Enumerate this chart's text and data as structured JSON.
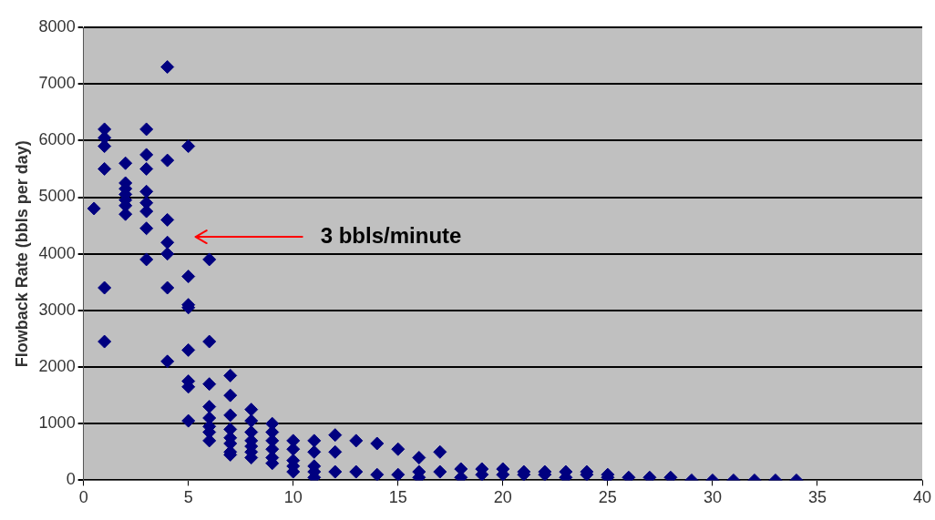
{
  "chart_data": {
    "type": "scatter",
    "ylabel": "Flowback Rate (bbls per day)",
    "x": [
      0.5,
      1,
      1,
      1,
      1,
      1,
      1,
      2,
      2,
      2,
      2,
      2,
      2,
      2,
      3,
      3,
      3,
      3,
      3,
      3,
      3,
      3,
      4,
      4,
      4,
      4,
      4,
      4,
      4,
      5,
      5,
      5,
      5,
      5,
      5,
      5,
      5,
      6,
      6,
      6,
      6,
      6,
      6,
      6,
      6,
      7,
      7,
      7,
      7,
      7,
      7,
      7,
      7,
      8,
      8,
      8,
      8,
      8,
      8,
      8,
      9,
      9,
      9,
      9,
      9,
      9,
      10,
      10,
      10,
      10,
      10,
      11,
      11,
      11,
      11,
      11,
      12,
      12,
      12,
      13,
      13,
      14,
      14,
      15,
      15,
      16,
      16,
      16,
      17,
      17,
      18,
      18,
      19,
      19,
      20,
      20,
      21,
      21,
      22,
      22,
      23,
      23,
      24,
      24,
      25,
      25,
      26,
      27,
      28,
      29,
      30,
      31,
      32,
      33,
      34
    ],
    "series": [
      {
        "color": "#000080",
        "values": [
          4800,
          6200,
          6050,
          5900,
          5500,
          3400,
          2450,
          5600,
          5250,
          5150,
          5050,
          4950,
          4850,
          4700,
          6200,
          5750,
          5500,
          5100,
          4900,
          4750,
          4450,
          3900,
          7300,
          5650,
          4600,
          4200,
          4000,
          3400,
          2100,
          5900,
          3600,
          3100,
          3050,
          2300,
          1750,
          1650,
          1050,
          3900,
          2450,
          1700,
          1300,
          1100,
          950,
          850,
          700,
          1850,
          1500,
          1150,
          900,
          750,
          650,
          500,
          450,
          1250,
          1050,
          850,
          700,
          600,
          500,
          400,
          1000,
          850,
          700,
          550,
          400,
          300,
          700,
          550,
          350,
          250,
          150,
          700,
          500,
          250,
          150,
          50,
          800,
          500,
          150,
          700,
          150,
          650,
          100,
          550,
          100,
          400,
          150,
          50,
          500,
          150,
          200,
          50,
          200,
          100,
          200,
          100,
          150,
          100,
          150,
          100,
          150,
          50,
          150,
          100,
          100,
          50,
          50,
          50,
          50,
          0,
          0,
          0,
          0,
          0,
          0
        ]
      }
    ],
    "xlim": [
      0,
      40
    ],
    "xticks": [
      0,
      5,
      10,
      15,
      20,
      25,
      30,
      35,
      40
    ],
    "ylim": [
      0,
      8000
    ],
    "yticks": [
      0,
      1000,
      2000,
      3000,
      4000,
      5000,
      6000,
      7000,
      8000
    ],
    "grid": "y",
    "legend": false,
    "marker": "diamond",
    "annotations": [
      "3 bbls/minute"
    ]
  }
}
